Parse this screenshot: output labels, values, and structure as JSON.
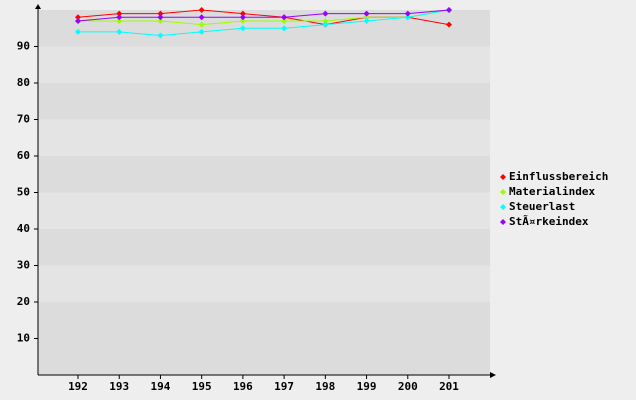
{
  "chart_data": {
    "type": "line",
    "categories": [
      "192",
      "193",
      "194",
      "195",
      "196",
      "197",
      "198",
      "199",
      "200",
      "201"
    ],
    "series": [
      {
        "name": "Einflussbereich",
        "color": "#ff0000",
        "values": [
          98,
          99,
          99,
          100,
          99,
          98,
          96,
          98,
          98,
          96
        ]
      },
      {
        "name": "Materialindex",
        "color": "#99ff00",
        "values": [
          97,
          97,
          97,
          96,
          97,
          97,
          97,
          98,
          98,
          100
        ]
      },
      {
        "name": "Steuerlast",
        "color": "#00ffff",
        "values": [
          94,
          94,
          93,
          94,
          95,
          95,
          96,
          97,
          98,
          100
        ]
      },
      {
        "name": "StÃ¤rkeindex",
        "color": "#9900ff",
        "values": [
          97,
          98,
          98,
          98,
          98,
          98,
          99,
          99,
          99,
          100
        ]
      }
    ],
    "ylim": [
      0,
      100
    ],
    "yticks": [
      10,
      20,
      30,
      40,
      50,
      60,
      70,
      80,
      90
    ],
    "grid": true
  }
}
